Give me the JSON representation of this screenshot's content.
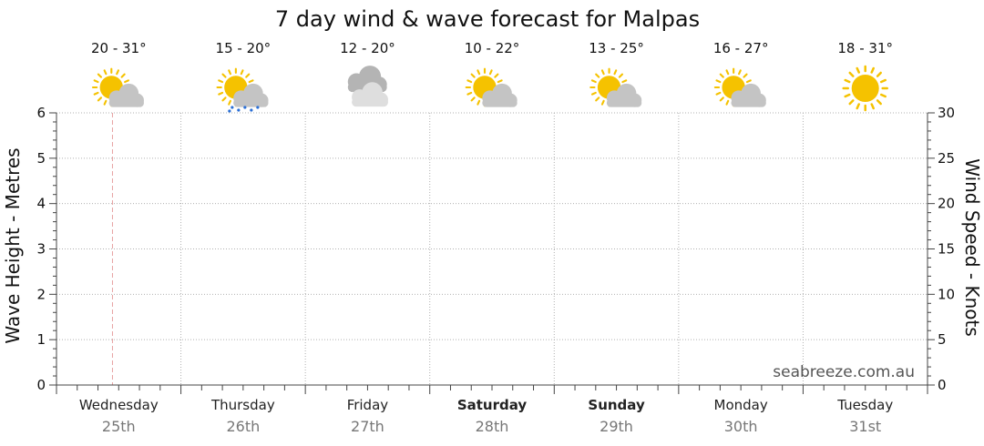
{
  "chart_data": {
    "type": "line",
    "title": "7 day wind & wave forecast for Malpas",
    "y_left_label": "Wave Height - Metres",
    "y_left_range": [
      0,
      6
    ],
    "y_left_ticks": [
      "0",
      "1",
      "2",
      "3",
      "4",
      "5",
      "6"
    ],
    "y_right_label": "Wind Speed - Knots",
    "y_right_range": [
      0,
      30
    ],
    "y_right_ticks": [
      "0",
      "5",
      "10",
      "15",
      "20",
      "25",
      "30"
    ],
    "grid": true,
    "days": [
      {
        "day": "Wednesday",
        "date": "25th",
        "temp": "20 - 31°",
        "icon": "partly-cloudy-icon",
        "bold": false
      },
      {
        "day": "Thursday",
        "date": "26th",
        "temp": "15 - 20°",
        "icon": "partly-cloudy-showers-icon",
        "bold": false
      },
      {
        "day": "Friday",
        "date": "27th",
        "temp": "12 - 20°",
        "icon": "cloudy-icon",
        "bold": false
      },
      {
        "day": "Saturday",
        "date": "28th",
        "temp": "10 - 22°",
        "icon": "partly-cloudy-icon",
        "bold": true
      },
      {
        "day": "Sunday",
        "date": "29th",
        "temp": "13 - 25°",
        "icon": "partly-cloudy-icon",
        "bold": true
      },
      {
        "day": "Monday",
        "date": "30th",
        "temp": "16 - 27°",
        "icon": "partly-cloudy-icon",
        "bold": false
      },
      {
        "day": "Tuesday",
        "date": "31st",
        "temp": "18 - 31°",
        "icon": "sunny-icon",
        "bold": false
      }
    ],
    "current_time_marker_day_fraction": 0.45,
    "series": []
  },
  "watermark": "seabreeze.com.au",
  "colors": {
    "grid": "#b0b0b0",
    "axis": "#444444",
    "now_marker": "#e8a0a0",
    "sun": "#f5c200",
    "sun_rays": "#f5c200",
    "cloud_light": "#d6d6d6",
    "cloud_dark": "#b8b8b8",
    "rain": "#2a6fd6"
  }
}
